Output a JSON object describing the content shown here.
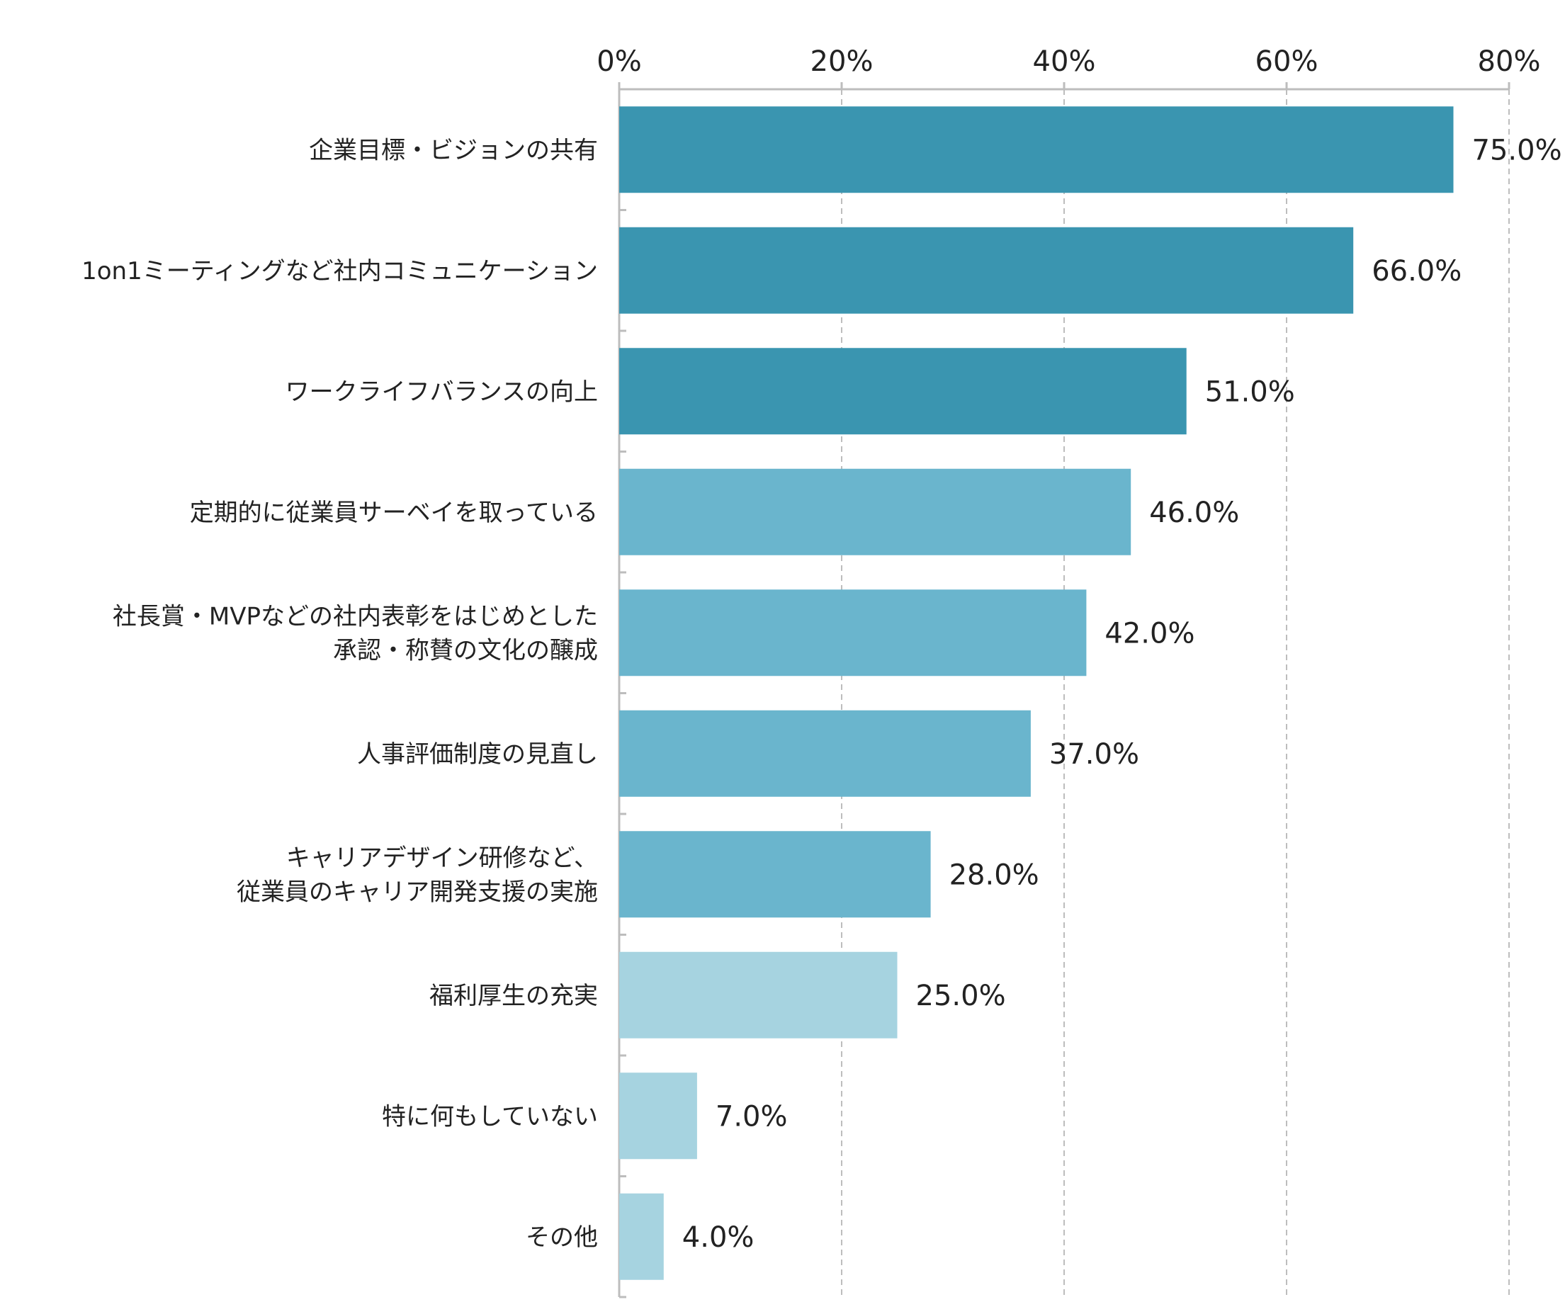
{
  "chart_data": {
    "type": "bar",
    "orientation": "horizontal",
    "categories": [
      "企業目標・ビジョンの共有",
      "1on1ミーティングなど社内コミュニケーション",
      "ワークライフバランスの向上",
      "定期的に従業員サーベイを取っている",
      "社長賞・MVPなどの社内表彰をはじめとした\n承認・称賛の文化の醸成",
      "人事評価制度の見直し",
      "キャリアデザイン研修など、\n従業員のキャリア開発支援の実施",
      "福利厚生の充実",
      "特に何もしていない",
      "その他"
    ],
    "values": [
      75.0,
      66.0,
      51.0,
      46.0,
      42.0,
      37.0,
      28.0,
      25.0,
      7.0,
      4.0
    ],
    "value_labels": [
      "75.0%",
      "66.0%",
      "51.0%",
      "46.0%",
      "42.0%",
      "37.0%",
      "28.0%",
      "25.0%",
      "7.0%",
      "4.0%"
    ],
    "bar_colors": [
      "#3A95B0",
      "#3A95B0",
      "#3A95B0",
      "#6AB5CD",
      "#6AB5CD",
      "#6AB5CD",
      "#6AB5CD",
      "#A6D3E0",
      "#A6D3E0",
      "#A6D3E0"
    ],
    "xlim": [
      0,
      80
    ],
    "x_ticks": [
      0,
      20,
      40,
      60,
      80
    ],
    "x_tick_labels": [
      "0%",
      "20%",
      "40%",
      "60%",
      "80%"
    ],
    "x_axis_position": "top",
    "grid": "vertical dashed",
    "grid_color": "#BDBDBD",
    "axis_color": "#BDBDBD",
    "legend": "none"
  }
}
